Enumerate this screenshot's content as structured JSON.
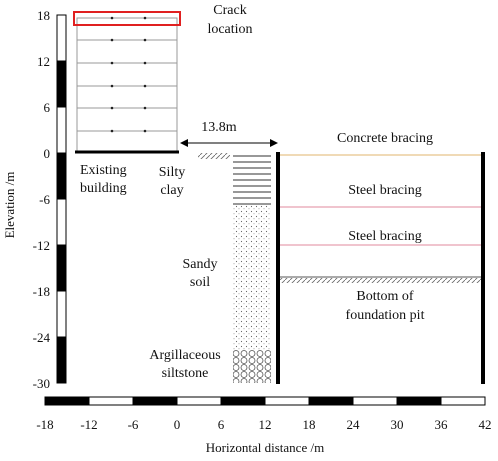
{
  "vertical_axis": {
    "label": "Elevation /m",
    "ticks": [
      "18",
      "12",
      "6",
      "0",
      "-6",
      "-12",
      "-18",
      "-24",
      "-30"
    ]
  },
  "horizontal_axis": {
    "label": "Horizontal distance /m",
    "ticks": [
      "-18",
      "-12",
      "-6",
      "0",
      "6",
      "12",
      "18",
      "24",
      "30",
      "36",
      "42"
    ]
  },
  "annotations": {
    "crack_location": [
      "Crack",
      "location"
    ],
    "distance": "13.8m",
    "existing_building": [
      "Existing",
      "building"
    ],
    "silty_clay": [
      "Silty",
      "clay"
    ],
    "sandy_soil": [
      "Sandy",
      "soil"
    ],
    "argillaceous_siltstone": [
      "Argillaceous",
      "siltstone"
    ],
    "concrete_bracing": "Concrete bracing",
    "steel_bracing_1": "Steel bracing",
    "steel_bracing_2": "Steel bracing",
    "bottom_of_pit": [
      "Bottom of",
      "foundation pit"
    ]
  }
}
